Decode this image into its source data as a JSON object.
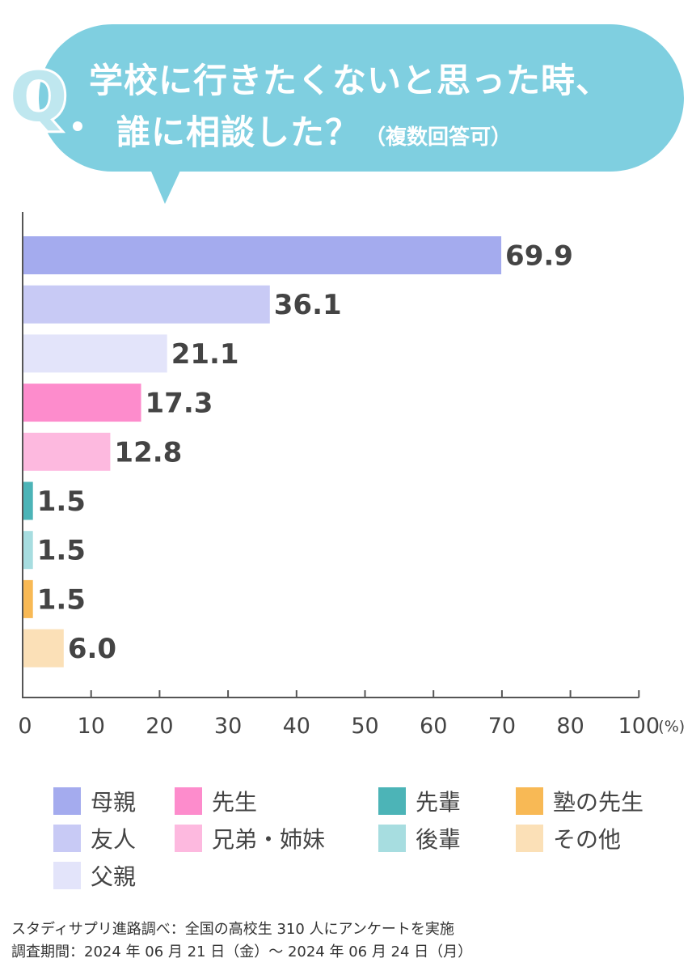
{
  "question": {
    "mark": "Q",
    "line1": "学校に行きたくないと思った時、",
    "line2": "誰に相談した？",
    "note": "（複数回答可）",
    "bubble_color": "#7fcfe0"
  },
  "chart_data": {
    "type": "bar",
    "orientation": "horizontal",
    "categories": [
      "母親",
      "友人",
      "父親",
      "先生",
      "兄弟・姉妹",
      "先輩",
      "後輩",
      "塾の先生",
      "その他"
    ],
    "values": [
      69.9,
      36.1,
      21.1,
      17.3,
      12.8,
      1.5,
      1.5,
      1.5,
      6.0
    ],
    "value_labels": [
      "69.9",
      "36.1",
      "21.1",
      "17.3",
      "12.8",
      "1.5",
      "1.5",
      "1.5",
      "6.0"
    ],
    "colors": [
      "#a4abee",
      "#c8caf5",
      "#e3e4fa",
      "#fd8ccc",
      "#fdb9df",
      "#4cb4b7",
      "#a7dde0",
      "#f8b955",
      "#fbe0b7"
    ],
    "xlim": [
      0,
      100
    ],
    "xticks": [
      "0",
      "10",
      "20",
      "30",
      "40",
      "50",
      "60",
      "70",
      "80",
      "100"
    ],
    "xtick_values": [
      0,
      10,
      20,
      30,
      40,
      50,
      60,
      70,
      80,
      100
    ],
    "unit": "(%)",
    "legend": [
      {
        "label": "母親",
        "color": "#a4abee"
      },
      {
        "label": "先生",
        "color": "#fd8ccc"
      },
      {
        "label": "先輩",
        "color": "#4cb4b7"
      },
      {
        "label": "塾の先生",
        "color": "#f8b955"
      },
      {
        "label": "友人",
        "color": "#c8caf5"
      },
      {
        "label": "兄弟・姉妹",
        "color": "#fdb9df"
      },
      {
        "label": "後輩",
        "color": "#a7dde0"
      },
      {
        "label": "その他",
        "color": "#fbe0b7"
      },
      {
        "label": "父親",
        "color": "#e3e4fa"
      }
    ]
  },
  "footer": {
    "line1": "スタディサプリ進路調べ：全国の高校生 310 人にアンケートを実施",
    "line2": "調査期間：2024 年 06 月 21 日（金）〜 2024 年 06 月 24 日（月）"
  }
}
